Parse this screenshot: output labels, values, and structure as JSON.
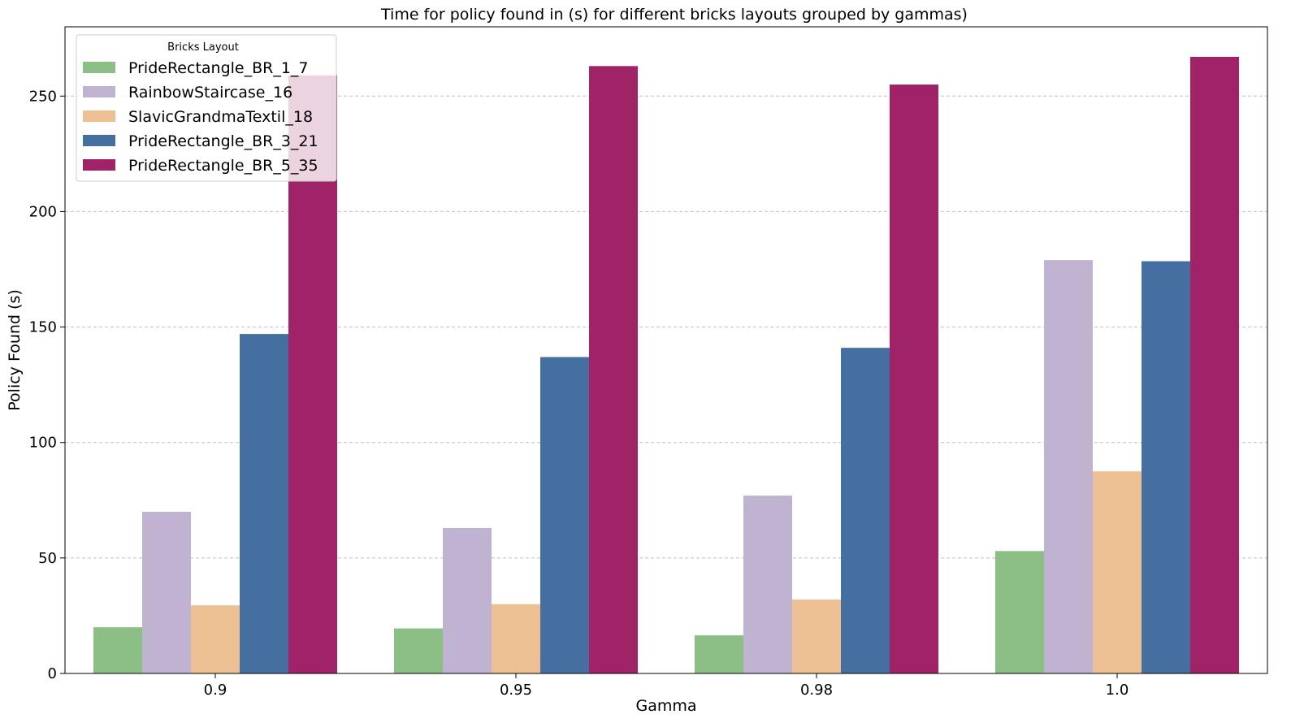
{
  "chart_data": {
    "type": "bar",
    "title": "Time for policy found in (s) for different bricks layouts  grouped by gammas)",
    "xlabel": "Gamma",
    "ylabel": "Policy Found (s)",
    "categories": [
      "0.9",
      "0.95",
      "0.98",
      "1.0"
    ],
    "ylim": [
      0,
      280
    ],
    "yticks": [
      0,
      50,
      100,
      150,
      200,
      250
    ],
    "grid": "y-dashed",
    "legend": {
      "title": "Bricks Layout",
      "placement": "top-left"
    },
    "series": [
      {
        "name": "PrideRectangle_BR_1_7",
        "color": "#8bbf86",
        "values": [
          20,
          19.5,
          16.5,
          53
        ]
      },
      {
        "name": "RainbowStaircase_16",
        "color": "#c0b3d1",
        "values": [
          70,
          63,
          77,
          179
        ]
      },
      {
        "name": "SlavicGrandmaTextil_18",
        "color": "#edc093",
        "values": [
          29.5,
          30,
          32,
          87.5
        ]
      },
      {
        "name": "PrideRectangle_BR_3_21",
        "color": "#466fa1",
        "values": [
          147,
          137,
          141,
          178.5
        ]
      },
      {
        "name": "PrideRectangle_BR_5_35",
        "color": "#a02367",
        "values": [
          259,
          263,
          255,
          267
        ]
      }
    ]
  }
}
